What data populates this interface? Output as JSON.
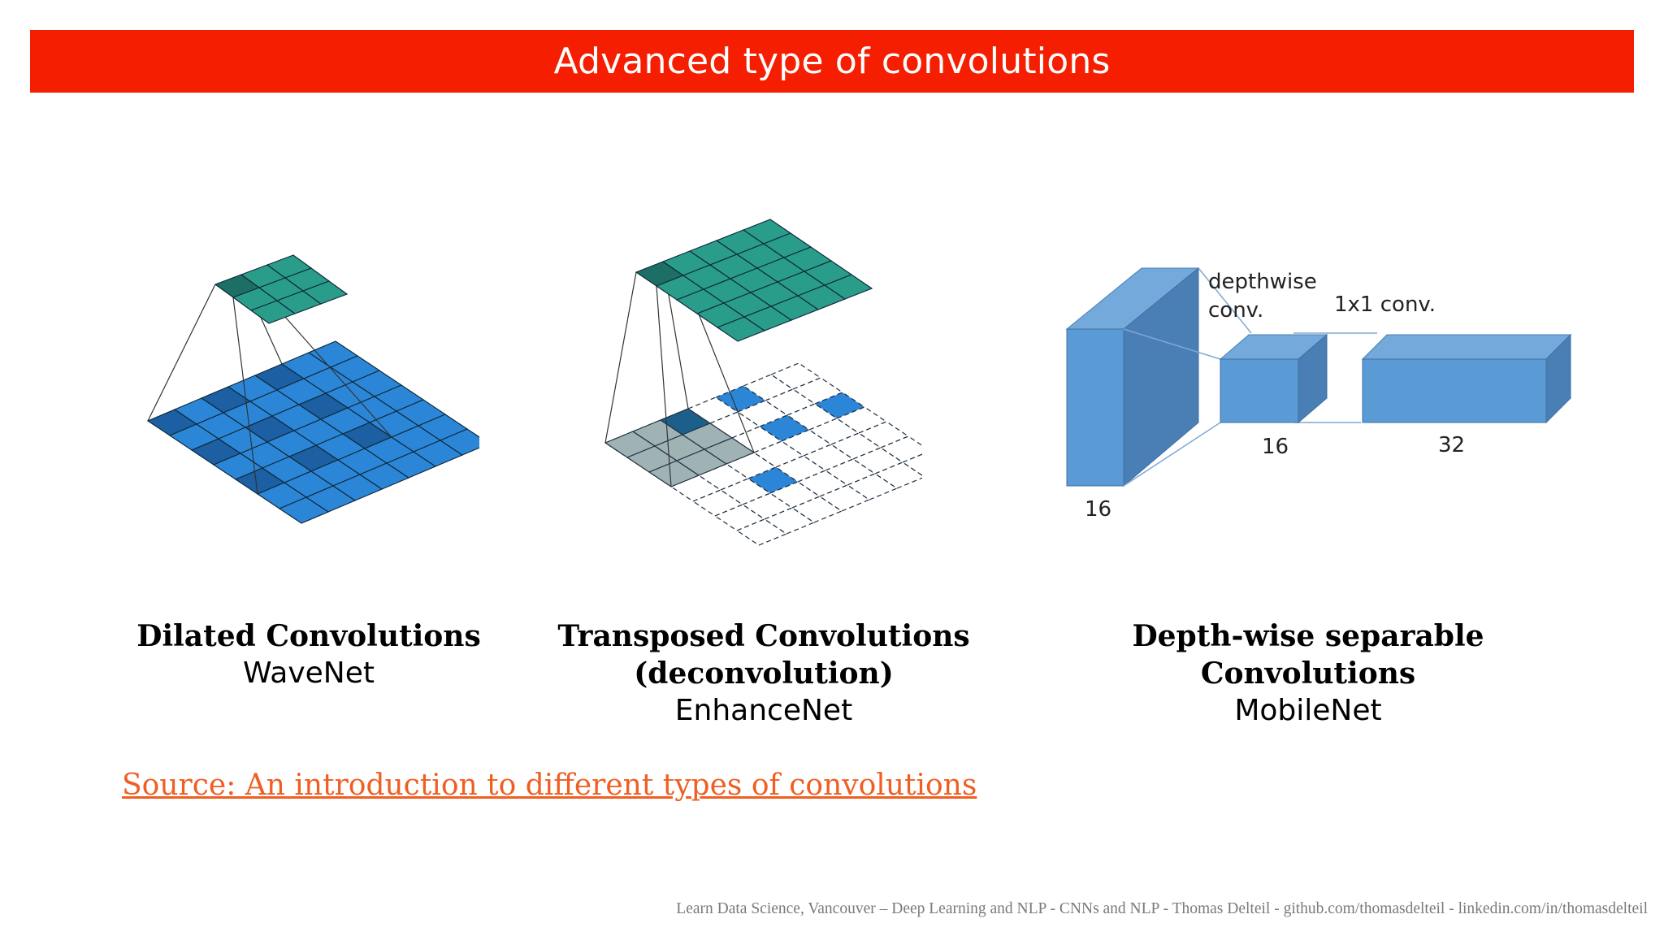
{
  "slide": {
    "title": "Advanced type of convolutions"
  },
  "figures": {
    "dilated": {
      "caption_title": "Dilated Convolutions",
      "caption_sub": "WaveNet"
    },
    "transposed": {
      "caption_title_line1": "Transposed Convolutions",
      "caption_title_line2": "(deconvolution)",
      "caption_sub": "EnhanceNet"
    },
    "depthwise": {
      "caption_title_line1": "Depth-wise separable",
      "caption_title_line2": "Convolutions",
      "caption_sub": "MobileNet",
      "label_depthwise": "depthwise",
      "label_conv": "conv.",
      "label_1x1": "1x1 conv.",
      "label_16_input": "16",
      "label_16_mid": "16",
      "label_32": "32"
    }
  },
  "source": {
    "link_text": "Source: An introduction to different types of convolutions"
  },
  "footer": {
    "text": "Learn Data Science, Vancouver – Deep Learning and NLP - CNNs and NLP - Thomas Delteil - github.com/thomasdelteil - linkedin.com/in/thomasdelteil"
  },
  "colors": {
    "title_bar": "#f51e00",
    "teal": "#2a9d8a",
    "teal_dark": "#1d6f66",
    "blue": "#2c86d8",
    "blue_dark": "#1c5fa3",
    "box_blue": "#5b9bd5",
    "box_side": "#4a7fb5",
    "gray_cell": "#9fb3b5",
    "link": "#ef5f23"
  }
}
